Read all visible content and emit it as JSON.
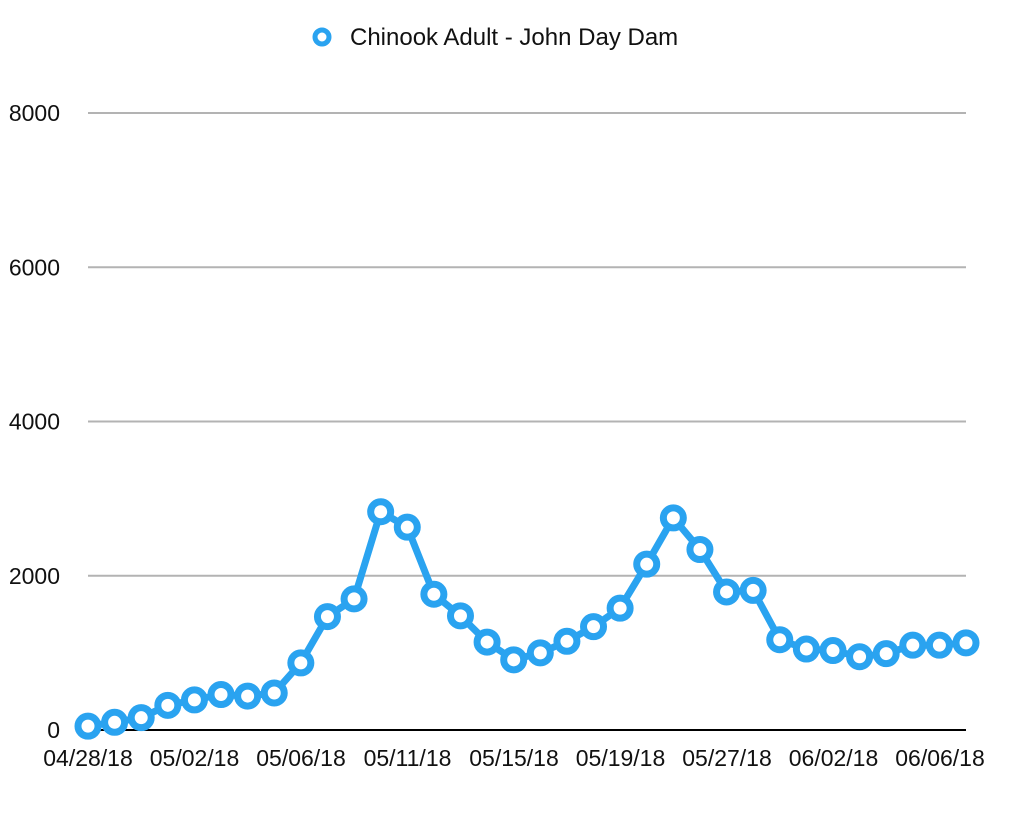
{
  "chart_data": {
    "type": "line",
    "title": "",
    "xlabel": "",
    "ylabel": "",
    "ylim": [
      0,
      8000
    ],
    "yticks": [
      0,
      2000,
      4000,
      6000,
      8000
    ],
    "grid": true,
    "legend_position": "top-center",
    "x_tick_labels": [
      "04/28/18",
      "05/02/18",
      "05/06/18",
      "05/11/18",
      "05/15/18",
      "05/19/18",
      "05/27/18",
      "06/02/18",
      "06/06/18"
    ],
    "series": [
      {
        "name": "Chinook Adult - John Day Dam",
        "color": "#2aa3f0",
        "marker": "circle-open",
        "values": [
          50,
          100,
          160,
          320,
          390,
          460,
          440,
          480,
          870,
          1470,
          1700,
          2830,
          2630,
          1760,
          1480,
          1140,
          910,
          1000,
          1150,
          1340,
          1580,
          2150,
          2750,
          2340,
          1790,
          1810,
          1170,
          1050,
          1030,
          950,
          990,
          1100,
          1100,
          1130
        ]
      }
    ]
  }
}
